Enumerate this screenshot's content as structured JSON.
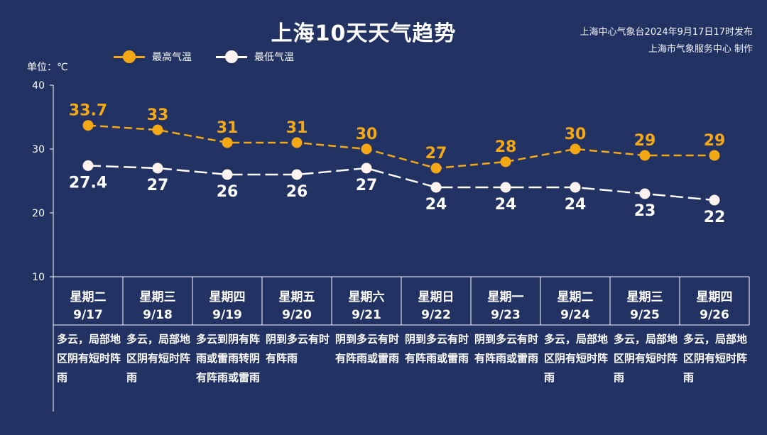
{
  "title": "上海10天天气趋势",
  "source": {
    "line1": "上海中心气象台2024年9月17日17时发布",
    "line2": "上海市气象服务中心 制作"
  },
  "unit_label": "单位：℃",
  "colors": {
    "high": "#f5a816",
    "low": "#ffffff",
    "background": "#223263"
  },
  "chart_data": {
    "type": "line",
    "title": "上海10天天气趋势",
    "ylabel": "单位：℃",
    "ylim": [
      10,
      40
    ],
    "yticks": [
      10,
      20,
      30,
      40
    ],
    "grid": false,
    "legend_position": "top-left",
    "categories": [
      "9/17",
      "9/18",
      "9/19",
      "9/20",
      "9/21",
      "9/22",
      "9/23",
      "9/24",
      "9/25",
      "9/26"
    ],
    "series": [
      {
        "name": "最高气温",
        "values": [
          33.7,
          33,
          31,
          31,
          30,
          27,
          28,
          30,
          29,
          29
        ],
        "labels": [
          "33.7",
          "33",
          "31",
          "31",
          "30",
          "27",
          "28",
          "30",
          "29",
          "29"
        ]
      },
      {
        "name": "最低气温",
        "values": [
          27.4,
          27,
          26,
          26,
          27,
          24,
          24,
          24,
          23,
          22
        ],
        "labels": [
          "27.4",
          "27",
          "26",
          "26",
          "27",
          "24",
          "24",
          "24",
          "23",
          "22"
        ]
      }
    ]
  },
  "days": [
    {
      "weekday": "星期二",
      "date": "9/17",
      "weather": "多云，局部地区阴有短时阵雨"
    },
    {
      "weekday": "星期三",
      "date": "9/18",
      "weather": "多云，局部地区阴有短时阵雨"
    },
    {
      "weekday": "星期四",
      "date": "9/19",
      "weather": "多云到阴有阵雨或雷雨转阴有阵雨或雷雨"
    },
    {
      "weekday": "星期五",
      "date": "9/20",
      "weather": "阴到多云有时有阵雨"
    },
    {
      "weekday": "星期六",
      "date": "9/21",
      "weather": "阴到多云有时有阵雨或雷雨"
    },
    {
      "weekday": "星期日",
      "date": "9/22",
      "weather": "阴到多云有时有阵雨或雷雨"
    },
    {
      "weekday": "星期一",
      "date": "9/23",
      "weather": "阴到多云有时有阵雨或雷雨"
    },
    {
      "weekday": "星期二",
      "date": "9/24",
      "weather": "多云，局部地区阴有短时阵雨"
    },
    {
      "weekday": "星期三",
      "date": "9/25",
      "weather": "多云，局部地区阴有短时阵雨"
    },
    {
      "weekday": "星期四",
      "date": "9/26",
      "weather": "多云，局部地区阴有短时阵雨"
    }
  ]
}
